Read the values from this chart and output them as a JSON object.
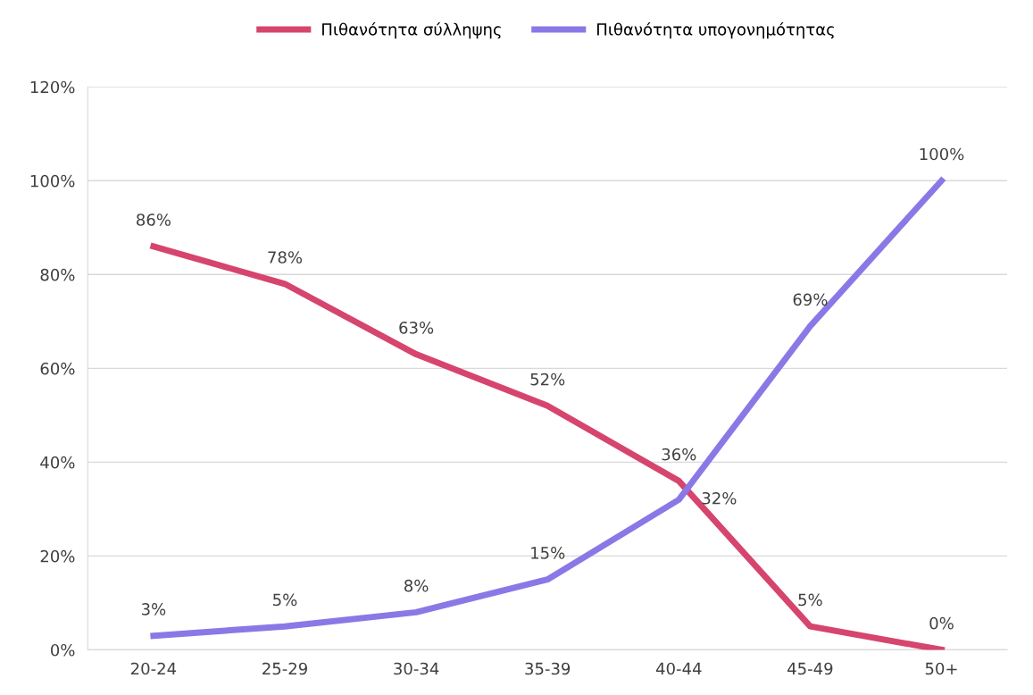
{
  "chart_data": {
    "type": "line",
    "categories": [
      "20-24",
      "25-29",
      "30-34",
      "35-39",
      "40-44",
      "45-49",
      "50+"
    ],
    "series": [
      {
        "name": "Πιθανότητα σύλληψης",
        "color": "#d6456e",
        "values": [
          86,
          78,
          63,
          52,
          36,
          5,
          0
        ],
        "value_labels": [
          "86%",
          "78%",
          "63%",
          "52%",
          "36%",
          "5%",
          "0%"
        ]
      },
      {
        "name": "Πιθανότητα υπογονημότητας",
        "color": "#8b78e6",
        "values": [
          3,
          5,
          8,
          15,
          32,
          69,
          100
        ],
        "value_labels": [
          "3%",
          "5%",
          "8%",
          "15%",
          "32%",
          "69%",
          "100%"
        ]
      }
    ],
    "ylim": [
      0,
      120
    ],
    "yticks": [
      {
        "value": 0,
        "label": "0%"
      },
      {
        "value": 20,
        "label": "20%"
      },
      {
        "value": 40,
        "label": "40%"
      },
      {
        "value": 60,
        "label": "60%"
      },
      {
        "value": 80,
        "label": "80%"
      },
      {
        "value": 100,
        "label": "100%"
      },
      {
        "value": 120,
        "label": "120%"
      }
    ],
    "grid": "y",
    "legend": "top",
    "marker": "none",
    "line_style": "solid"
  }
}
